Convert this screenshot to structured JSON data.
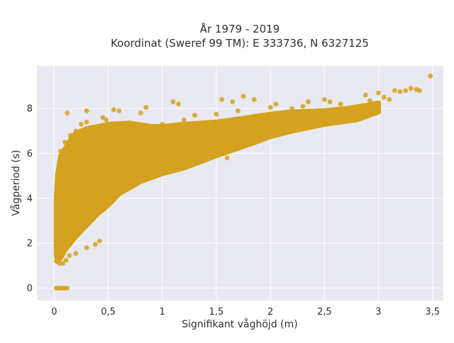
{
  "chart_data": {
    "type": "scatter",
    "title_line1": "År 1979 - 2019",
    "title_line2": "Koordinat (Sweref 99 TM): E 333736, N 6327125",
    "xlabel": "Signifikant våghöjd (m)",
    "ylabel": "Vågperiod (s)",
    "xlim": [
      -0.16,
      3.6
    ],
    "ylim": [
      -0.55,
      9.9
    ],
    "xticks": [
      0,
      0.5,
      1,
      1.5,
      2,
      2.5,
      3,
      3.5
    ],
    "xtick_labels": [
      "0",
      "0,5",
      "1",
      "1,5",
      "2",
      "2,5",
      "3",
      "3,5"
    ],
    "yticks": [
      0,
      2,
      4,
      6,
      8
    ],
    "ytick_labels": [
      "0",
      "2",
      "4",
      "6",
      "8"
    ],
    "grid": true,
    "colors": {
      "marker": "#d4a21f",
      "plot_bg": "#e9e9f1",
      "grid": "#ffffff"
    },
    "points": [
      [
        0.02,
        0
      ],
      [
        0.04,
        0
      ],
      [
        0.06,
        0
      ],
      [
        0.08,
        0
      ],
      [
        0.1,
        0
      ],
      [
        0.12,
        0
      ],
      [
        0.02,
        1.2
      ],
      [
        0.03,
        1.6
      ],
      [
        0.05,
        1.1
      ],
      [
        0.08,
        1.1
      ],
      [
        0.11,
        1.25
      ],
      [
        0.14,
        1.45
      ],
      [
        0.2,
        1.55
      ],
      [
        0.3,
        1.8
      ],
      [
        0.38,
        1.95
      ],
      [
        0.42,
        2.1
      ],
      [
        0.02,
        2.8
      ],
      [
        0.03,
        4.2
      ],
      [
        0.04,
        5.3
      ],
      [
        0.06,
        6.1
      ],
      [
        0.1,
        6.5
      ],
      [
        0.15,
        6.8
      ],
      [
        0.2,
        7.0
      ],
      [
        0.25,
        7.3
      ],
      [
        0.3,
        7.4
      ],
      [
        0.45,
        7.6
      ],
      [
        0.6,
        7.9
      ],
      [
        0.8,
        7.8
      ],
      [
        0.9,
        7.2
      ],
      [
        1.0,
        7.3
      ],
      [
        1.2,
        7.5
      ],
      [
        1.3,
        7.7
      ],
      [
        1.5,
        7.75
      ],
      [
        1.7,
        7.9
      ],
      [
        2.0,
        8.05
      ],
      [
        2.2,
        8.0
      ],
      [
        2.3,
        8.1
      ],
      [
        0.3,
        3.8
      ],
      [
        0.5,
        4.3
      ],
      [
        0.8,
        4.8
      ],
      [
        1.0,
        5.3
      ],
      [
        1.2,
        5.6
      ],
      [
        1.5,
        6.0
      ],
      [
        1.6,
        5.8
      ],
      [
        1.8,
        6.4
      ],
      [
        2.0,
        6.8
      ],
      [
        2.2,
        7.0
      ],
      [
        2.5,
        7.3
      ],
      [
        2.7,
        7.6
      ],
      [
        2.9,
        7.9
      ],
      [
        3.0,
        8.1
      ],
      [
        0.12,
        7.8
      ],
      [
        0.3,
        7.9
      ],
      [
        0.48,
        7.5
      ],
      [
        0.55,
        7.95
      ],
      [
        0.85,
        8.05
      ],
      [
        1.1,
        8.3
      ],
      [
        1.15,
        8.2
      ],
      [
        1.55,
        8.4
      ],
      [
        1.65,
        8.3
      ],
      [
        1.75,
        8.55
      ],
      [
        1.85,
        8.4
      ],
      [
        2.05,
        8.2
      ],
      [
        2.35,
        8.3
      ],
      [
        2.5,
        8.4
      ],
      [
        2.55,
        8.3
      ],
      [
        2.65,
        8.2
      ],
      [
        2.88,
        8.6
      ],
      [
        2.92,
        8.35
      ],
      [
        3.0,
        8.7
      ],
      [
        3.05,
        8.5
      ],
      [
        3.1,
        8.4
      ],
      [
        3.15,
        8.8
      ],
      [
        3.2,
        8.75
      ],
      [
        3.25,
        8.8
      ],
      [
        3.3,
        8.9
      ],
      [
        3.35,
        8.85
      ],
      [
        3.38,
        8.8
      ],
      [
        3.48,
        9.45
      ]
    ],
    "bands": [
      {
        "series": "mass",
        "upper": [
          [
            0.02,
            4.0
          ],
          [
            0.03,
            5.0
          ],
          [
            0.06,
            5.9
          ],
          [
            0.1,
            6.2
          ],
          [
            0.15,
            6.6
          ],
          [
            0.2,
            6.9
          ],
          [
            0.3,
            7.1
          ],
          [
            0.4,
            7.2
          ],
          [
            0.5,
            7.3
          ],
          [
            0.7,
            7.35
          ],
          [
            0.9,
            7.2
          ],
          [
            1.0,
            7.2
          ],
          [
            1.2,
            7.3
          ],
          [
            1.5,
            7.4
          ],
          [
            1.8,
            7.6
          ],
          [
            2.0,
            7.75
          ],
          [
            2.2,
            7.85
          ],
          [
            2.5,
            7.9
          ],
          [
            2.7,
            8.0
          ],
          [
            2.9,
            8.15
          ],
          [
            3.0,
            8.25
          ]
        ],
        "lower": [
          [
            3.0,
            7.85
          ],
          [
            2.8,
            7.5
          ],
          [
            2.5,
            7.3
          ],
          [
            2.2,
            7.0
          ],
          [
            2.0,
            6.75
          ],
          [
            1.8,
            6.4
          ],
          [
            1.5,
            5.9
          ],
          [
            1.2,
            5.35
          ],
          [
            1.0,
            5.1
          ],
          [
            0.8,
            4.75
          ],
          [
            0.6,
            4.2
          ],
          [
            0.5,
            3.7
          ],
          [
            0.4,
            3.3
          ],
          [
            0.3,
            2.8
          ],
          [
            0.2,
            2.3
          ],
          [
            0.15,
            2.0
          ],
          [
            0.1,
            1.7
          ],
          [
            0.06,
            1.35
          ],
          [
            0.03,
            1.2
          ],
          [
            0.02,
            1.5
          ]
        ]
      }
    ]
  }
}
